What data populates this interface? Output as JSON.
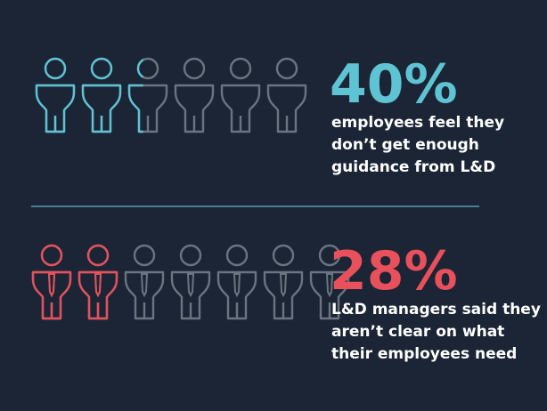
{
  "stats": [
    {
      "value": 40,
      "label": "40%",
      "color": "#5ec4d4",
      "lines": [
        "employees feel they",
        "don’t get enough",
        "guidance from L&D"
      ]
    },
    {
      "value": 28,
      "label": "28%",
      "color": "#e8505b",
      "lines": [
        "L&D managers said they",
        "aren’t clear on what",
        "their employees need"
      ]
    }
  ]
}
